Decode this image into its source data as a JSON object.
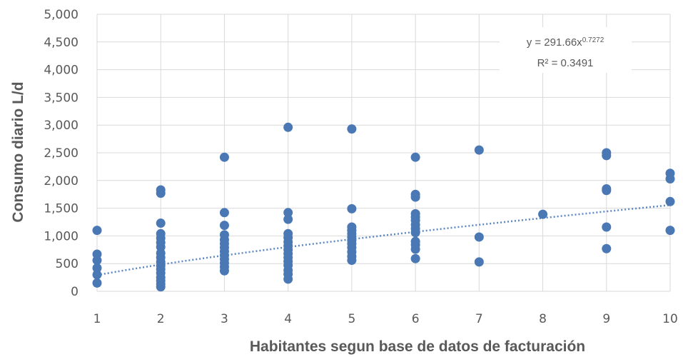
{
  "chart_data": {
    "type": "scatter",
    "title": "",
    "xlabel": "Habitantes segun base de datos de facturación",
    "ylabel": "Consumo  diario L/d",
    "xlim": [
      1,
      10
    ],
    "ylim": [
      0,
      5000
    ],
    "x_ticks": [
      "1",
      "2",
      "3",
      "4",
      "5",
      "6",
      "7",
      "8",
      "9",
      "10"
    ],
    "y_ticks": [
      "0",
      "500",
      "1,000",
      "1,500",
      "2,000",
      "2,500",
      "3,000",
      "3,500",
      "4,000",
      "4,500",
      "5,000"
    ],
    "grid": true,
    "series": [
      {
        "color": "#4a78b4",
        "points": [
          [
            1,
            1100
          ],
          [
            1,
            670
          ],
          [
            1,
            560
          ],
          [
            1,
            420
          ],
          [
            1,
            300
          ],
          [
            1,
            150
          ],
          [
            2,
            1830
          ],
          [
            2,
            1770
          ],
          [
            2,
            1230
          ],
          [
            2,
            1040
          ],
          [
            2,
            960
          ],
          [
            2,
            880
          ],
          [
            2,
            800
          ],
          [
            2,
            690
          ],
          [
            2,
            610
          ],
          [
            2,
            530
          ],
          [
            2,
            460
          ],
          [
            2,
            400
          ],
          [
            2,
            330
          ],
          [
            2,
            250
          ],
          [
            2,
            190
          ],
          [
            2,
            130
          ],
          [
            2,
            80
          ],
          [
            3,
            2420
          ],
          [
            3,
            1420
          ],
          [
            3,
            1190
          ],
          [
            3,
            1020
          ],
          [
            3,
            930
          ],
          [
            3,
            860
          ],
          [
            3,
            790
          ],
          [
            3,
            720
          ],
          [
            3,
            650
          ],
          [
            3,
            580
          ],
          [
            3,
            510
          ],
          [
            3,
            440
          ],
          [
            3,
            370
          ],
          [
            4,
            2960
          ],
          [
            4,
            1420
          ],
          [
            4,
            1300
          ],
          [
            4,
            1040
          ],
          [
            4,
            970
          ],
          [
            4,
            890
          ],
          [
            4,
            820
          ],
          [
            4,
            750
          ],
          [
            4,
            680
          ],
          [
            4,
            610
          ],
          [
            4,
            540
          ],
          [
            4,
            470
          ],
          [
            4,
            380
          ],
          [
            4,
            310
          ],
          [
            4,
            220
          ],
          [
            5,
            2930
          ],
          [
            5,
            1490
          ],
          [
            5,
            1160
          ],
          [
            5,
            1100
          ],
          [
            5,
            1040
          ],
          [
            5,
            980
          ],
          [
            5,
            920
          ],
          [
            5,
            860
          ],
          [
            5,
            790
          ],
          [
            5,
            710
          ],
          [
            5,
            630
          ],
          [
            5,
            560
          ],
          [
            6,
            2420
          ],
          [
            6,
            1750
          ],
          [
            6,
            1700
          ],
          [
            6,
            1400
          ],
          [
            6,
            1340
          ],
          [
            6,
            1280
          ],
          [
            6,
            1200
          ],
          [
            6,
            1130
          ],
          [
            6,
            1060
          ],
          [
            6,
            900
          ],
          [
            6,
            840
          ],
          [
            6,
            760
          ],
          [
            6,
            590
          ],
          [
            7,
            2550
          ],
          [
            7,
            980
          ],
          [
            7,
            530
          ],
          [
            8,
            1390
          ],
          [
            9,
            2500
          ],
          [
            9,
            2450
          ],
          [
            9,
            1850
          ],
          [
            9,
            1820
          ],
          [
            9,
            1160
          ],
          [
            9,
            770
          ],
          [
            10,
            2130
          ],
          [
            10,
            2030
          ],
          [
            10,
            1620
          ],
          [
            10,
            1100
          ]
        ]
      }
    ],
    "trendline": {
      "type": "power",
      "a": 291.66,
      "b": 0.7272,
      "style": "dotted",
      "equation_prefix": "y = 291.66x",
      "equation_exponent": "0.7272",
      "r2_label": "R² = 0.3491"
    }
  }
}
